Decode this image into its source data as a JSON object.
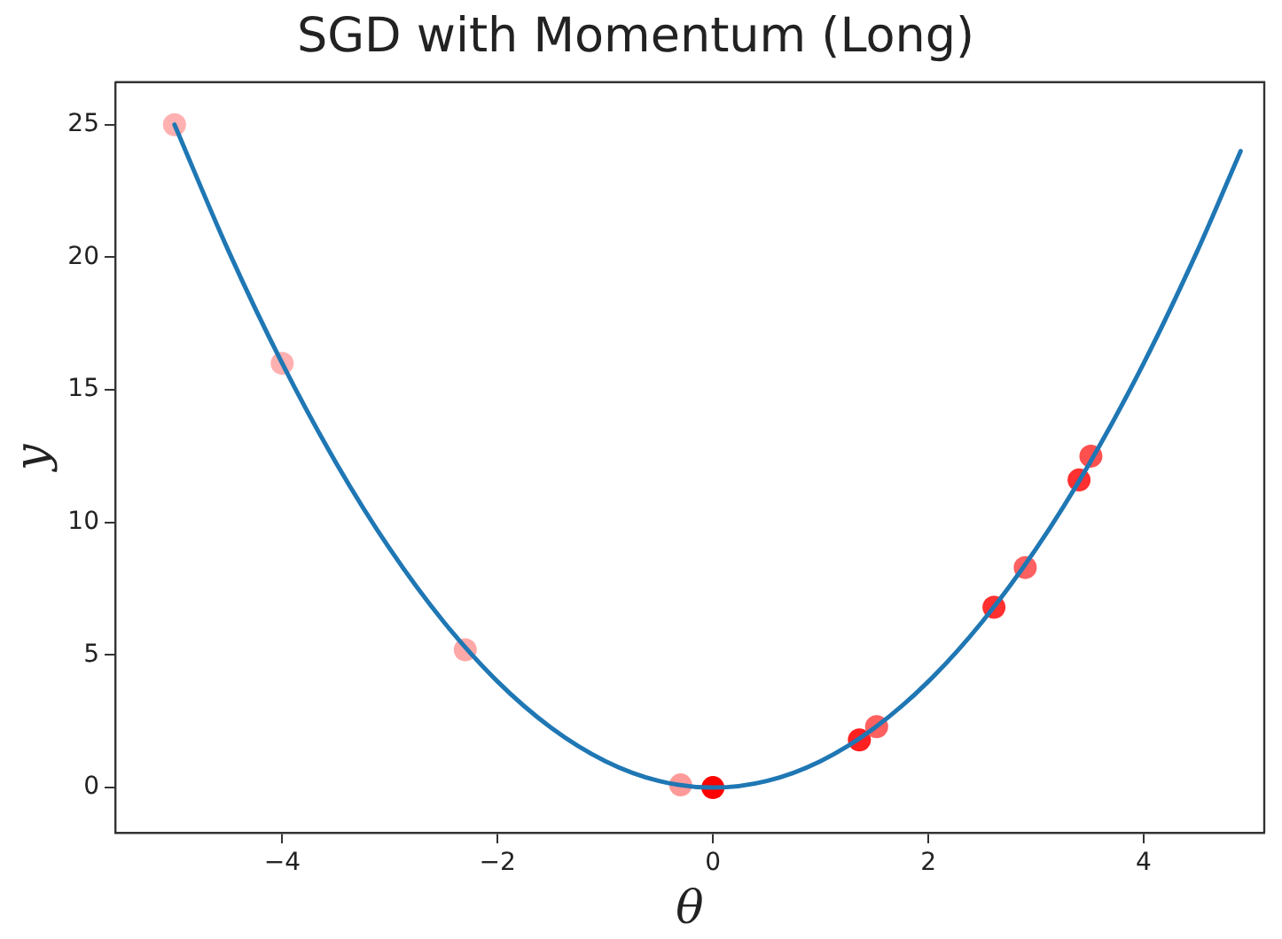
{
  "chart_data": {
    "type": "line",
    "title": "SGD with Momentum (Long)",
    "xlabel": "θ",
    "ylabel": "y",
    "xlim": [
      -5.55,
      5.12
    ],
    "ylim": [
      -1.7,
      26.6
    ],
    "xticks": [
      {
        "value": -4,
        "label": "−4"
      },
      {
        "value": -2,
        "label": "−2"
      },
      0,
      2,
      4
    ],
    "yticks": [
      0,
      5,
      10,
      15,
      20,
      25
    ],
    "grid": false,
    "legend": false,
    "series": [
      {
        "color": "#1f77b4",
        "marker": "none",
        "line_style": "solid",
        "x": [
          -5,
          -4.5,
          -4,
          -3.5,
          -3,
          -2.5,
          -2,
          -1.5,
          -1,
          -0.5,
          0,
          0.5,
          1,
          1.5,
          2,
          2.5,
          3,
          3.5,
          4,
          4.5,
          4.9
        ],
        "values": [
          25,
          20.25,
          16,
          12.25,
          9,
          6.25,
          4,
          2.25,
          1,
          0.25,
          0,
          0.25,
          1,
          2.25,
          4,
          6.25,
          9,
          12.25,
          16,
          20.25,
          24
        ]
      },
      {
        "type": "scatter",
        "marker": "circle",
        "x": [
          -5,
          -4,
          -2.3,
          -0.3,
          0,
          1.36,
          1.52,
          2.61,
          2.9,
          3.4,
          3.51
        ],
        "values": [
          25,
          16,
          5.2,
          0.1,
          0,
          1.8,
          2.3,
          6.8,
          8.3,
          11.6,
          12.5
        ],
        "colors": [
          "#ffb0b0",
          "#ffb0b0",
          "#ffa8a8",
          "#ff9a9a",
          "#ff0000",
          "#ff2020",
          "#ff6060",
          "#ff3030",
          "#ff6060",
          "#ff3030",
          "#ff5050"
        ]
      }
    ]
  }
}
